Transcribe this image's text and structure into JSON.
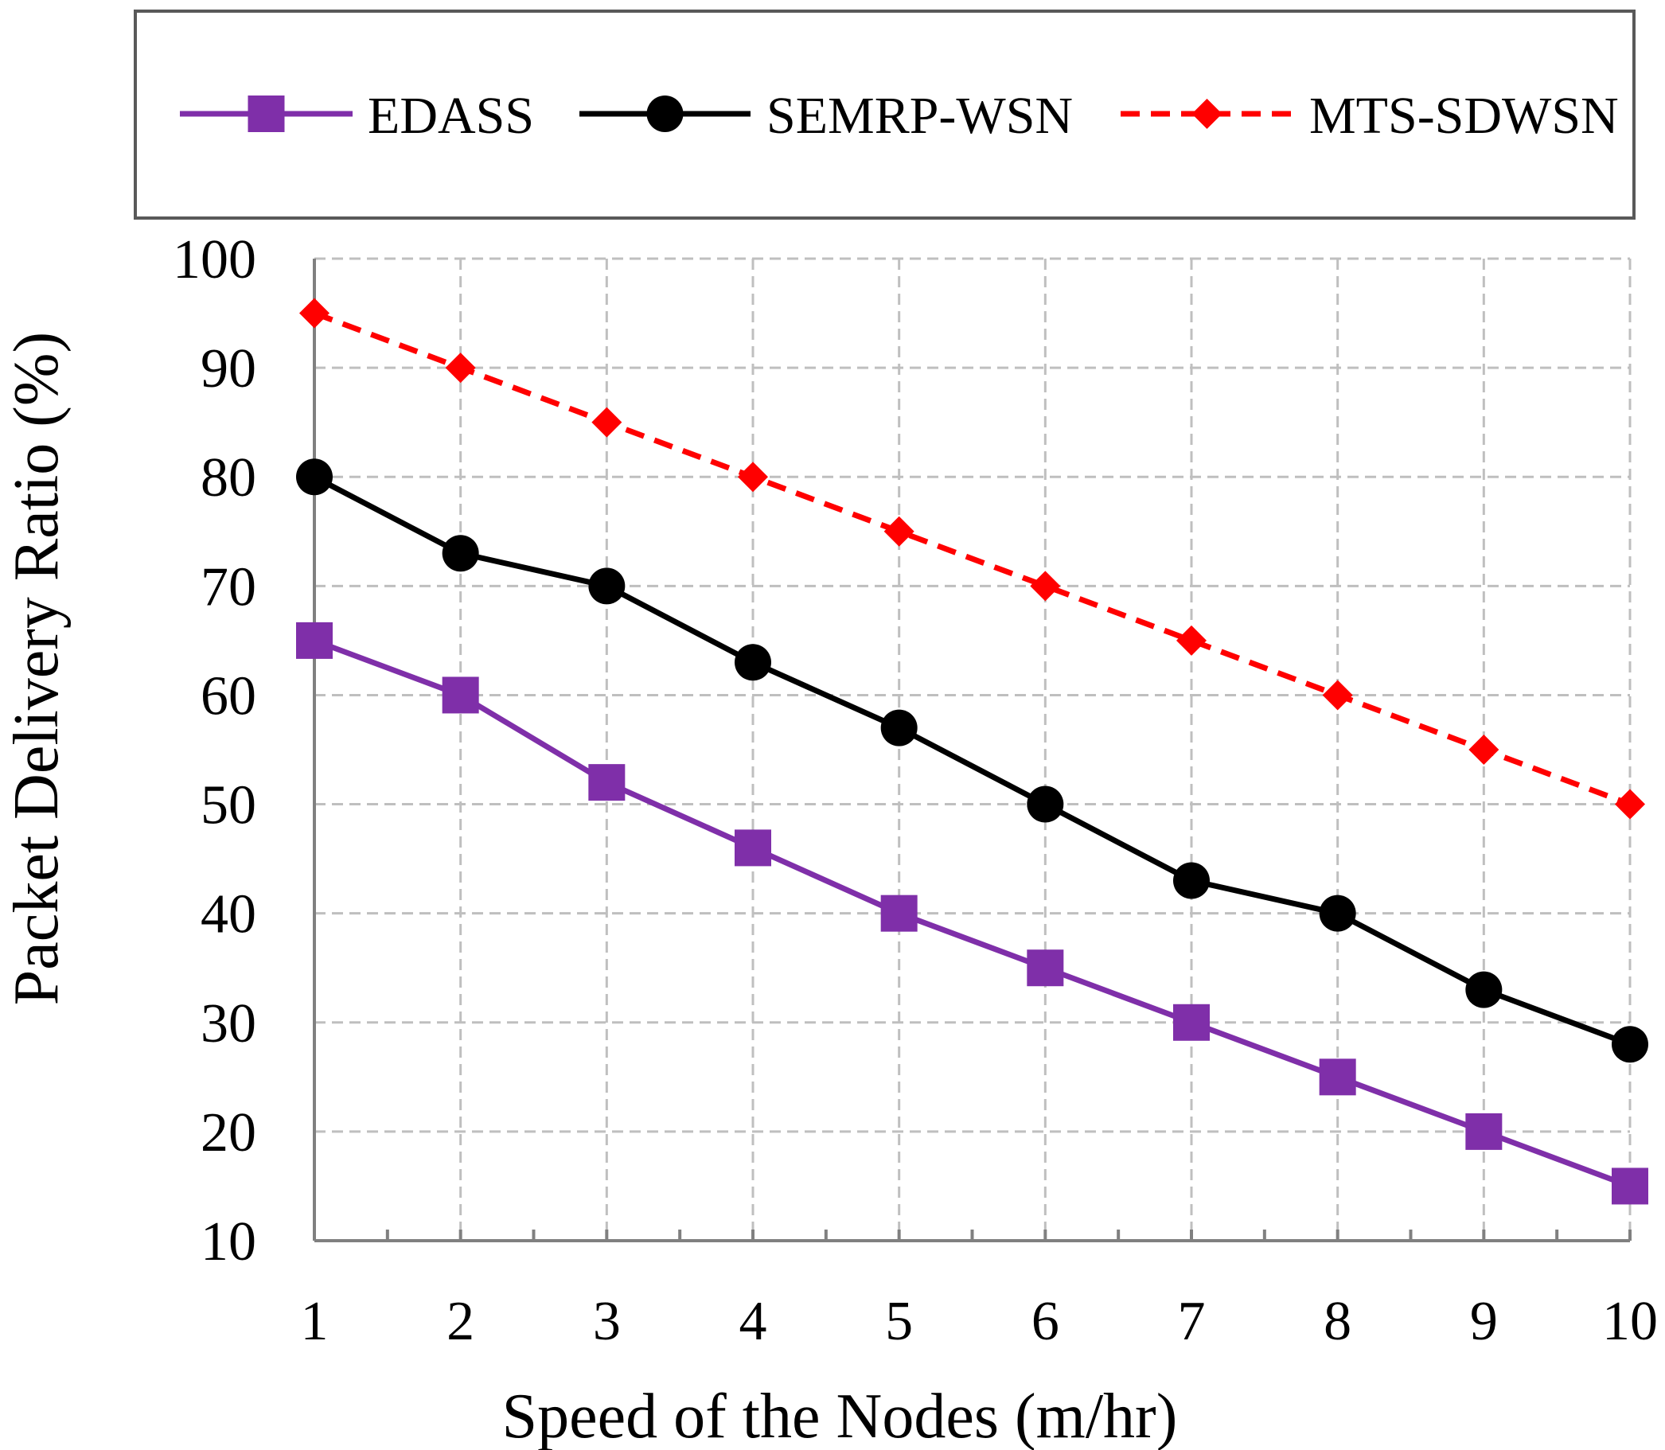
{
  "chart_data": {
    "type": "line",
    "title": "",
    "xlabel": "Speed of the Nodes (m/hr)",
    "ylabel": "Packet Delivery Ratio (%)",
    "x": [
      1,
      2,
      3,
      4,
      5,
      6,
      7,
      8,
      9,
      10
    ],
    "xlim": [
      1,
      10
    ],
    "ylim": [
      10,
      100
    ],
    "yticks": [
      10,
      20,
      30,
      40,
      50,
      60,
      70,
      80,
      90,
      100
    ],
    "grid": true,
    "legend_position": "top",
    "series": [
      {
        "name": "EDASS",
        "values": [
          65,
          60,
          52,
          46,
          40,
          35,
          30,
          25,
          20,
          15
        ],
        "color": "#7f2fa9",
        "marker": "square",
        "line_style": "solid"
      },
      {
        "name": "SEMRP-WSN",
        "values": [
          80,
          73,
          70,
          63,
          57,
          50,
          43,
          40,
          33,
          28
        ],
        "color": "#000000",
        "marker": "circle",
        "line_style": "solid"
      },
      {
        "name": "MTS-SDWSN",
        "values": [
          95,
          90,
          85,
          80,
          75,
          70,
          65,
          60,
          55,
          50
        ],
        "color": "#ff0000",
        "marker": "diamond",
        "line_style": "dashed"
      }
    ]
  }
}
